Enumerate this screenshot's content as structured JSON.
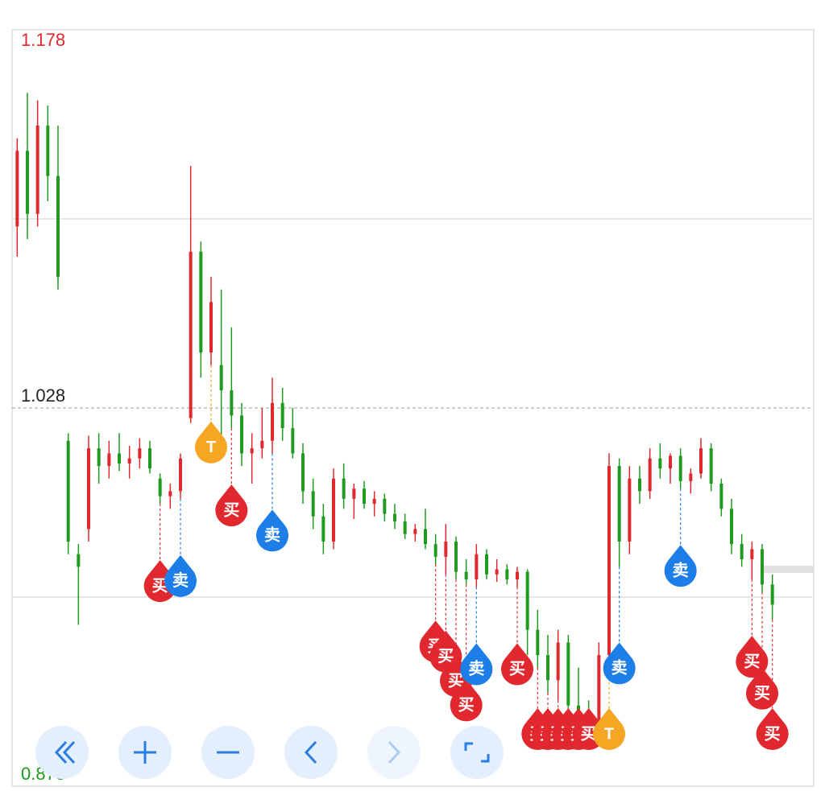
{
  "chart_data": {
    "type": "candlestick",
    "ylim": [
      0.878,
      1.178
    ],
    "yticks": [
      1.178,
      1.028,
      0.878
    ],
    "ygrid": [
      1.103,
      0.953
    ],
    "last_price": 1.028,
    "up_color": "#e0282e",
    "down_color": "#1e9a1e",
    "candles": [
      [
        1.1,
        1.135,
        1.088,
        1.13
      ],
      [
        1.13,
        1.153,
        1.095,
        1.105
      ],
      [
        1.105,
        1.15,
        1.1,
        1.14
      ],
      [
        1.14,
        1.148,
        1.11,
        1.12
      ],
      [
        1.12,
        1.14,
        1.075,
        1.08
      ],
      [
        1.015,
        1.018,
        0.97,
        0.975
      ],
      [
        0.97,
        0.974,
        0.942,
        0.965
      ],
      [
        0.98,
        1.017,
        0.975,
        1.012
      ],
      [
        1.012,
        1.018,
        0.998,
        1.005
      ],
      [
        1.005,
        1.015,
        1.0,
        1.01
      ],
      [
        1.01,
        1.018,
        1.003,
        1.006
      ],
      [
        1.006,
        1.013,
        1.0,
        1.008
      ],
      [
        1.008,
        1.016,
        1.004,
        1.012
      ],
      [
        1.012,
        1.015,
        1.002,
        1.004
      ],
      [
        1.0,
        1.002,
        0.99,
        0.993
      ],
      [
        0.993,
        0.998,
        0.988,
        0.995
      ],
      [
        0.995,
        1.01,
        0.992,
        1.008
      ],
      [
        1.024,
        1.124,
        1.022,
        1.09
      ],
      [
        1.09,
        1.094,
        1.04,
        1.05
      ],
      [
        1.05,
        1.08,
        1.045,
        1.07
      ],
      [
        1.045,
        1.075,
        1.015,
        1.035
      ],
      [
        1.035,
        1.06,
        1.02,
        1.025
      ],
      [
        1.025,
        1.03,
        1.005,
        1.01
      ],
      [
        1.01,
        1.018,
        0.998,
        1.012
      ],
      [
        1.012,
        1.028,
        1.008,
        1.015
      ],
      [
        1.015,
        1.04,
        1.01,
        1.03
      ],
      [
        1.03,
        1.036,
        1.015,
        1.02
      ],
      [
        1.02,
        1.028,
        1.008,
        1.01
      ],
      [
        1.01,
        1.014,
        0.99,
        0.995
      ],
      [
        0.995,
        1.0,
        0.98,
        0.985
      ],
      [
        0.985,
        0.99,
        0.97,
        0.975
      ],
      [
        0.975,
        1.004,
        0.972,
        1.0
      ],
      [
        1.0,
        1.006,
        0.988,
        0.992
      ],
      [
        0.992,
        0.998,
        0.984,
        0.996
      ],
      [
        0.996,
        0.999,
        0.988,
        0.99
      ],
      [
        0.99,
        0.995,
        0.985,
        0.992
      ],
      [
        0.992,
        0.994,
        0.983,
        0.986
      ],
      [
        0.986,
        0.99,
        0.98,
        0.983
      ],
      [
        0.983,
        0.986,
        0.976,
        0.978
      ],
      [
        0.978,
        0.982,
        0.975,
        0.98
      ],
      [
        0.98,
        0.988,
        0.972,
        0.974
      ],
      [
        0.974,
        0.978,
        0.966,
        0.969
      ],
      [
        0.969,
        0.982,
        0.962,
        0.975
      ],
      [
        0.975,
        0.977,
        0.96,
        0.963
      ],
      [
        0.963,
        0.968,
        0.958,
        0.96
      ],
      [
        0.96,
        0.974,
        0.957,
        0.97
      ],
      [
        0.97,
        0.972,
        0.96,
        0.962
      ],
      [
        0.962,
        0.968,
        0.959,
        0.964
      ],
      [
        0.964,
        0.966,
        0.958,
        0.96
      ],
      [
        0.96,
        0.965,
        0.957,
        0.963
      ],
      [
        0.963,
        0.964,
        0.93,
        0.94
      ],
      [
        0.94,
        0.948,
        0.925,
        0.93
      ],
      [
        0.93,
        0.938,
        0.915,
        0.92
      ],
      [
        0.92,
        0.94,
        0.912,
        0.935
      ],
      [
        0.935,
        0.938,
        0.905,
        0.91
      ],
      [
        0.91,
        0.925,
        0.902,
        0.906
      ],
      [
        0.906,
        0.912,
        0.899,
        0.903
      ],
      [
        0.903,
        0.935,
        0.9,
        0.93
      ],
      [
        0.93,
        1.01,
        0.925,
        1.005
      ],
      [
        1.005,
        1.008,
        0.965,
        0.975
      ],
      [
        0.975,
        1.005,
        0.97,
        1.0
      ],
      [
        1.0,
        1.005,
        0.99,
        0.995
      ],
      [
        0.995,
        1.012,
        0.992,
        1.008
      ],
      [
        1.008,
        1.014,
        1.0,
        1.004
      ],
      [
        1.004,
        1.01,
        0.998,
        1.009
      ],
      [
        1.009,
        1.012,
        0.996,
        0.999
      ],
      [
        0.999,
        1.004,
        0.994,
        1.002
      ],
      [
        1.002,
        1.016,
        1.0,
        1.012
      ],
      [
        1.012,
        1.014,
        0.995,
        0.998
      ],
      [
        0.998,
        1.0,
        0.985,
        0.988
      ],
      [
        0.988,
        0.992,
        0.97,
        0.974
      ],
      [
        0.974,
        0.978,
        0.965,
        0.968
      ],
      [
        0.968,
        0.975,
        0.96,
        0.972
      ],
      [
        0.972,
        0.974,
        0.955,
        0.958
      ],
      [
        0.958,
        0.962,
        0.944,
        0.95
      ]
    ],
    "marker_colors": {
      "buy": "#e0282e",
      "sell": "#1c7ee6",
      "t": "#f5a623"
    },
    "markers": [
      {
        "index": 14,
        "kind": "buy",
        "label": "买"
      },
      {
        "index": 16,
        "kind": "sell",
        "label": "卖"
      },
      {
        "index": 19,
        "kind": "t",
        "label": "T"
      },
      {
        "index": 21,
        "kind": "buy",
        "label": "买"
      },
      {
        "index": 25,
        "kind": "sell",
        "label": "卖"
      },
      {
        "index": 41,
        "kind": "buy",
        "label": "买"
      },
      {
        "index": 42,
        "kind": "buy",
        "label": "买"
      },
      {
        "index": 43,
        "kind": "buy",
        "label": "买"
      },
      {
        "index": 44,
        "kind": "buy",
        "label": "买"
      },
      {
        "index": 45,
        "kind": "sell",
        "label": "卖"
      },
      {
        "index": 49,
        "kind": "buy",
        "label": "买"
      },
      {
        "index": 51,
        "kind": "buy",
        "label": "买"
      },
      {
        "index": 52,
        "kind": "buy",
        "label": "买"
      },
      {
        "index": 53,
        "kind": "buy",
        "label": "买"
      },
      {
        "index": 54,
        "kind": "buy",
        "label": "买"
      },
      {
        "index": 55,
        "kind": "buy",
        "label": "买"
      },
      {
        "index": 56,
        "kind": "buy",
        "label": "买"
      },
      {
        "index": 58,
        "kind": "t",
        "label": "T"
      },
      {
        "index": 59,
        "kind": "sell",
        "label": "卖"
      },
      {
        "index": 65,
        "kind": "sell",
        "label": "卖"
      },
      {
        "index": 72,
        "kind": "buy",
        "label": "买"
      },
      {
        "index": 73,
        "kind": "buy",
        "label": "买"
      },
      {
        "index": 74,
        "kind": "buy",
        "label": "买"
      }
    ]
  }
}
